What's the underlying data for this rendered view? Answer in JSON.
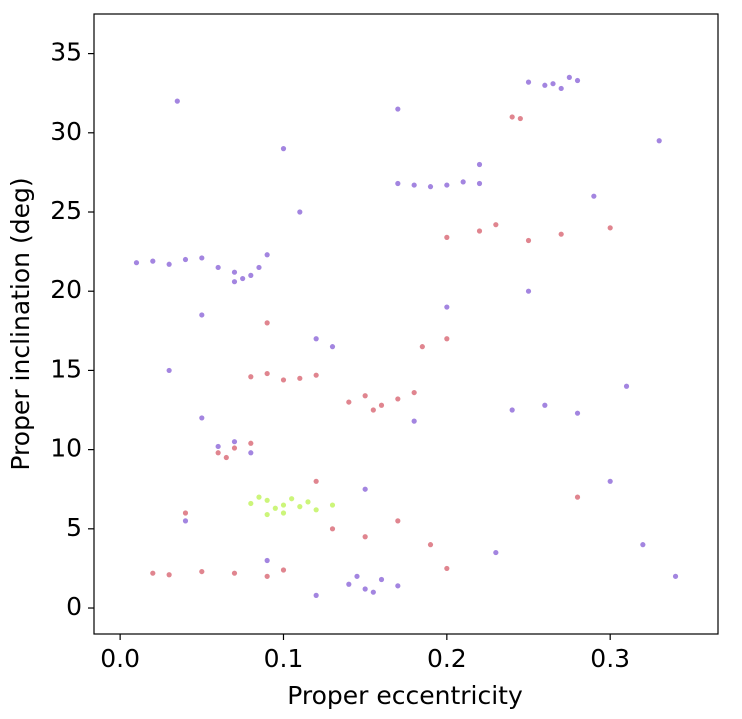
{
  "chart_data": {
    "type": "scatter",
    "xlabel": "Proper eccentricity",
    "ylabel": "Proper inclination (deg)",
    "xlim": [
      -0.016,
      0.366
    ],
    "ylim": [
      -1.64,
      37.5
    ],
    "xticks": [
      {
        "value": 0,
        "label": "0.0"
      },
      0.1,
      0.2,
      0.3
    ],
    "yticks": [
      0,
      5,
      10,
      15,
      20,
      25,
      30,
      35
    ],
    "series": [
      {
        "color": "#6633cc",
        "x": [
          0.01,
          0.02,
          0.03,
          0.04,
          0.05,
          0.06,
          0.07,
          0.075,
          0.08,
          0.085,
          0.07,
          0.09,
          0.14,
          0.15,
          0.16,
          0.17,
          0.155,
          0.145,
          0.18,
          0.17,
          0.19,
          0.2,
          0.21,
          0.22,
          0.25,
          0.26,
          0.27,
          0.275,
          0.28,
          0.265,
          0.06,
          0.07,
          0.08,
          0.05,
          0.04,
          0.12,
          0.13,
          0.24,
          0.26,
          0.28,
          0.3,
          0.32,
          0.34,
          0.03,
          0.11,
          0.2,
          0.22,
          0.1,
          0.05,
          0.15,
          0.25,
          0.29,
          0.33,
          0.18,
          0.09,
          0.035,
          0.17,
          0.23,
          0.31,
          0.12
        ],
        "y": [
          21.8,
          21.9,
          21.7,
          22.0,
          22.1,
          21.5,
          21.2,
          20.8,
          21.0,
          21.5,
          20.6,
          22.3,
          1.5,
          1.2,
          1.8,
          1.4,
          1.0,
          2.0,
          26.7,
          26.8,
          26.6,
          26.7,
          26.9,
          26.8,
          33.2,
          33.0,
          32.8,
          33.5,
          33.3,
          33.1,
          10.2,
          10.5,
          9.8,
          12.0,
          5.5,
          17.0,
          16.5,
          12.5,
          12.8,
          12.3,
          8.0,
          4.0,
          2.0,
          15.0,
          25.0,
          19.0,
          28.0,
          29.0,
          18.5,
          7.5,
          20.0,
          26.0,
          29.5,
          11.8,
          3.0,
          32.0,
          31.5,
          3.5,
          14.0,
          0.8
        ]
      },
      {
        "color": "#cc3344",
        "x": [
          0.02,
          0.03,
          0.05,
          0.07,
          0.09,
          0.1,
          0.08,
          0.09,
          0.1,
          0.11,
          0.12,
          0.14,
          0.15,
          0.16,
          0.17,
          0.18,
          0.155,
          0.06,
          0.07,
          0.08,
          0.065,
          0.2,
          0.22,
          0.23,
          0.25,
          0.27,
          0.24,
          0.245,
          0.13,
          0.15,
          0.17,
          0.19,
          0.2,
          0.04,
          0.12,
          0.2,
          0.185,
          0.09,
          0.3,
          0.28
        ],
        "y": [
          2.2,
          2.1,
          2.3,
          2.2,
          2.0,
          2.4,
          14.6,
          14.8,
          14.4,
          14.5,
          14.7,
          13.0,
          13.4,
          12.8,
          13.2,
          13.6,
          12.5,
          9.8,
          10.1,
          10.4,
          9.5,
          23.4,
          23.8,
          24.2,
          23.2,
          23.6,
          31.0,
          30.9,
          5.0,
          4.5,
          5.5,
          4.0,
          2.5,
          6.0,
          8.0,
          17.0,
          16.5,
          18.0,
          24.0,
          7.0
        ]
      },
      {
        "color": "#aaee22",
        "x": [
          0.08,
          0.09,
          0.095,
          0.1,
          0.105,
          0.11,
          0.115,
          0.12,
          0.085,
          0.1,
          0.13,
          0.09
        ],
        "y": [
          6.6,
          6.8,
          6.3,
          6.5,
          6.9,
          6.4,
          6.7,
          6.2,
          7.0,
          6.0,
          6.5,
          5.9
        ]
      }
    ]
  }
}
